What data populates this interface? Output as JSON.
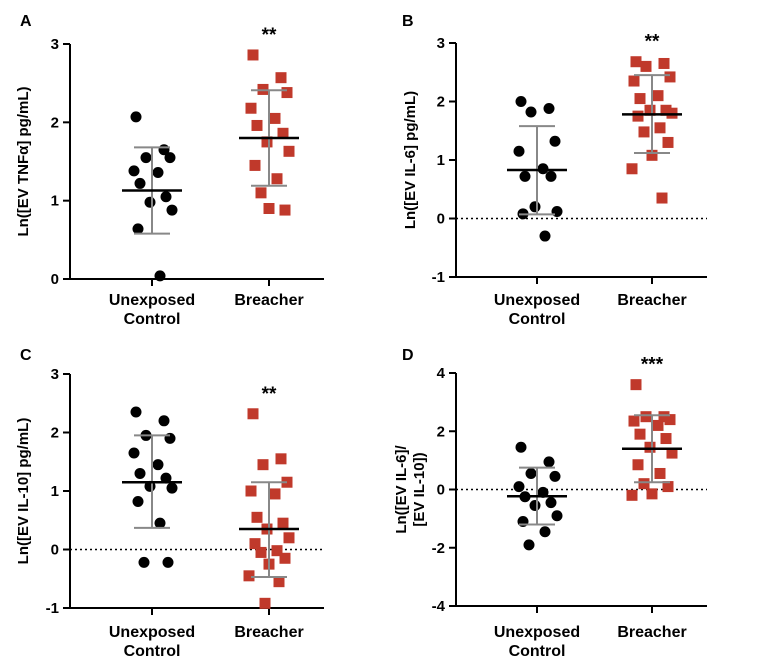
{
  "colors": {
    "control": "#000000",
    "breacher": "#c0392b",
    "error_bar": "#888888"
  },
  "chart_data": [
    {
      "panel": "A",
      "type": "scatter",
      "ylabel": "Ln([EV TNFα] pg/mL)",
      "categories": [
        "Unexposed\nControl",
        "Breacher"
      ],
      "ylim": [
        0,
        3
      ],
      "yticks": [
        "0",
        "1",
        "2",
        "3"
      ],
      "zero_line": false,
      "significance": "**",
      "groups": [
        {
          "name": "Unexposed Control",
          "marker": "circle",
          "values": [
            2.07,
            1.65,
            1.55,
            1.55,
            1.38,
            1.36,
            1.22,
            1.05,
            0.98,
            0.88,
            0.64,
            0.04
          ],
          "mean": 1.13,
          "sd_low": 0.58,
          "sd_high": 1.68
        },
        {
          "name": "Breacher",
          "marker": "square",
          "values": [
            2.86,
            2.57,
            2.42,
            2.38,
            2.18,
            2.05,
            1.96,
            1.86,
            1.75,
            1.63,
            1.45,
            1.28,
            1.1,
            0.88,
            0.9
          ],
          "mean": 1.8,
          "sd_low": 1.19,
          "sd_high": 2.41
        }
      ]
    },
    {
      "panel": "B",
      "type": "scatter",
      "ylabel": "Ln([EV IL-6] pg/mL)",
      "categories": [
        "Unexposed\nControl",
        "Breacher"
      ],
      "ylim": [
        -1,
        3
      ],
      "yticks": [
        "-1",
        "0",
        "1",
        "2",
        "3"
      ],
      "zero_line": true,
      "significance": "**",
      "groups": [
        {
          "name": "Unexposed Control",
          "marker": "circle",
          "values": [
            2.0,
            1.88,
            1.82,
            1.32,
            1.15,
            0.85,
            0.72,
            0.72,
            0.2,
            0.12,
            0.08,
            -0.3
          ],
          "mean": 0.83,
          "sd_low": 0.07,
          "sd_high": 1.58
        },
        {
          "name": "Breacher",
          "marker": "square",
          "values": [
            2.68,
            2.65,
            2.6,
            2.42,
            2.35,
            2.1,
            2.05,
            1.85,
            1.85,
            1.8,
            1.75,
            1.55,
            1.48,
            1.3,
            1.08,
            0.85,
            0.35
          ],
          "mean": 1.78,
          "sd_low": 1.12,
          "sd_high": 2.45
        }
      ]
    },
    {
      "panel": "C",
      "type": "scatter",
      "ylabel": "Ln([EV IL-10] pg/mL)",
      "categories": [
        "Unexposed\nControl",
        "Breacher"
      ],
      "ylim": [
        -1,
        3
      ],
      "yticks": [
        "-1",
        "0",
        "1",
        "2",
        "3"
      ],
      "zero_line": true,
      "significance": "**",
      "groups": [
        {
          "name": "Unexposed Control",
          "marker": "circle",
          "values": [
            2.35,
            2.2,
            1.95,
            1.9,
            1.65,
            1.45,
            1.3,
            1.22,
            1.08,
            1.05,
            0.82,
            0.45,
            -0.22,
            -0.22
          ],
          "mean": 1.15,
          "sd_low": 0.37,
          "sd_high": 1.95
        },
        {
          "name": "Breacher",
          "marker": "square",
          "values": [
            2.32,
            1.55,
            1.45,
            1.15,
            1.0,
            0.95,
            0.55,
            0.45,
            0.35,
            0.2,
            0.1,
            -0.02,
            -0.05,
            -0.15,
            -0.25,
            -0.45,
            -0.55,
            -0.92
          ],
          "mean": 0.35,
          "sd_low": -0.47,
          "sd_high": 1.15
        }
      ]
    },
    {
      "panel": "D",
      "type": "scatter",
      "ylabel_lines": [
        "Ln([EV IL-6]/",
        "[EV IL-10])"
      ],
      "categories": [
        "Unexposed\nControl",
        "Breacher"
      ],
      "ylim": [
        -4,
        4
      ],
      "yticks": [
        "-4",
        "-2",
        "0",
        "2",
        "4"
      ],
      "zero_line": true,
      "significance": "***",
      "groups": [
        {
          "name": "Unexposed Control",
          "marker": "circle",
          "values": [
            1.45,
            0.95,
            0.55,
            0.45,
            0.1,
            -0.1,
            -0.25,
            -0.45,
            -0.55,
            -0.9,
            -1.1,
            -1.45,
            -1.9
          ],
          "mean": -0.23,
          "sd_low": -1.2,
          "sd_high": 0.75
        },
        {
          "name": "Breacher",
          "marker": "square",
          "values": [
            3.6,
            2.5,
            2.5,
            2.4,
            2.35,
            2.2,
            1.9,
            1.75,
            1.45,
            1.25,
            0.85,
            0.55,
            0.2,
            0.1,
            -0.15,
            -0.2
          ],
          "mean": 1.4,
          "sd_low": 0.25,
          "sd_high": 2.55
        }
      ]
    }
  ]
}
